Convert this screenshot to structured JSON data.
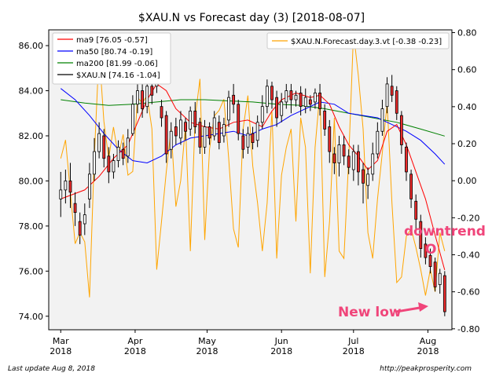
{
  "chart_data": {
    "type": "candlestick",
    "title": "$XAU.N vs Forecast day (3)  [2018-08-07]",
    "footer_left": "Last update Aug  8, 2018",
    "footer_right": "http://peakprosperity.com",
    "x_ticks": [
      {
        "label": "Mar\n2018",
        "day": 0
      },
      {
        "label": "Apr\n2018",
        "day": 31
      },
      {
        "label": "May\n2018",
        "day": 61
      },
      {
        "label": "Jun\n2018",
        "day": 92
      },
      {
        "label": "Jul\n2018",
        "day": 122
      },
      {
        "label": "Aug\n2018",
        "day": 153
      }
    ],
    "x_range_days": [
      -5,
      163
    ],
    "y_left": {
      "ylim": [
        73.4,
        86.7
      ],
      "ticks": [
        "74.00",
        "76.00",
        "78.00",
        "80.00",
        "82.00",
        "84.00",
        "86.00"
      ],
      "tick_values": [
        74,
        76,
        78,
        80,
        82,
        84,
        86
      ]
    },
    "y_right": {
      "ylim": [
        -0.805,
        0.815
      ],
      "ticks": [
        "-0.80",
        "-0.60",
        "-0.40",
        "-0.20",
        "0.00",
        "0.20",
        "0.40",
        "0.60",
        "0.80"
      ],
      "tick_values": [
        -0.8,
        -0.6,
        -0.4,
        -0.2,
        0,
        0.2,
        0.4,
        0.6,
        0.8
      ]
    },
    "legend_left": [
      {
        "name": "ma9 [76.05 -0.57]",
        "color": "#ff0000"
      },
      {
        "name": "ma50 [80.74 -0.19]",
        "color": "#0000ff"
      },
      {
        "name": "ma200 [81.99 -0.06]",
        "color": "#008000"
      },
      {
        "name": "$XAU.N [74.16 -1.04]",
        "color": "#000000"
      }
    ],
    "legend_right": [
      {
        "name": "$XAU.N.Forecast.day.3.vt [-0.38 -0.23]",
        "color": "#ffa500"
      }
    ],
    "candles": [
      [
        0,
        79.2,
        79.6,
        78.4,
        80.4
      ],
      [
        2,
        79.6,
        80,
        79,
        80.5
      ],
      [
        4,
        80.0,
        79.5,
        78.8,
        80.8
      ],
      [
        6,
        79.0,
        78.6,
        78,
        79.5
      ],
      [
        8,
        78.2,
        77.6,
        77.2,
        78.6
      ],
      [
        10,
        78.1,
        78.5,
        77.6,
        79
      ],
      [
        12,
        79.2,
        80.3,
        78.8,
        80.8
      ],
      [
        14,
        80.3,
        81.3,
        80,
        81.9
      ],
      [
        16,
        81.3,
        82.1,
        81.0,
        82.6
      ],
      [
        18,
        82.0,
        81.0,
        80.6,
        82.3
      ],
      [
        20,
        81.1,
        80.4,
        79.9,
        81.5
      ],
      [
        22,
        80.4,
        80.9,
        80.1,
        81.2
      ],
      [
        24,
        80.9,
        81.5,
        80.6,
        81.8
      ],
      [
        26,
        81.4,
        81.0,
        80.7,
        81.7
      ],
      [
        28,
        81.1,
        81.9,
        80.8,
        82.3
      ],
      [
        30,
        82.1,
        83.4,
        82,
        83.8
      ],
      [
        32,
        83.4,
        84.0,
        83.0,
        84.5
      ],
      [
        34,
        84.0,
        83.2,
        82.8,
        84.4
      ],
      [
        36,
        83.3,
        84.2,
        83.0,
        84.7
      ],
      [
        38,
        84.2,
        83.8,
        83.4,
        85.0
      ],
      [
        40,
        84.2,
        84.4,
        83.9,
        84.7
      ],
      [
        42,
        83.3,
        82.8,
        82.4,
        83.6
      ],
      [
        44,
        82.9,
        81.2,
        80.8,
        83.1
      ],
      [
        46,
        81.4,
        82.2,
        81.0,
        82.6
      ],
      [
        48,
        82.4,
        82.0,
        81.6,
        82.8
      ],
      [
        50,
        81.9,
        82.7,
        81.6,
        83.1
      ],
      [
        52,
        82.6,
        82.2,
        81.8,
        82.8
      ],
      [
        54,
        82.3,
        83.1,
        82.0,
        83.3
      ],
      [
        56,
        83.1,
        82.4,
        82.1,
        83.5
      ],
      [
        58,
        82.6,
        81.5,
        81.2,
        82.8
      ],
      [
        60,
        81.5,
        82.4,
        81.2,
        82.7
      ],
      [
        62,
        82.4,
        81.9,
        81.6,
        82.6
      ],
      [
        64,
        82.0,
        82.8,
        81.8,
        83.1
      ],
      [
        66,
        82.6,
        81.7,
        81.4,
        82.9
      ],
      [
        68,
        82.0,
        82.5,
        81.7,
        82.8
      ],
      [
        70,
        82.7,
        83.7,
        82.4,
        84.0
      ],
      [
        72,
        83.8,
        83.4,
        83.0,
        84.3
      ],
      [
        74,
        83.4,
        82.1,
        81.8,
        83.6
      ],
      [
        76,
        82.0,
        81.4,
        81.0,
        82.3
      ],
      [
        78,
        81.5,
        82.1,
        81.2,
        82.4
      ],
      [
        80,
        82.1,
        81.7,
        81.4,
        82.4
      ],
      [
        82,
        81.8,
        82.6,
        81.5,
        82.9
      ],
      [
        84,
        82.6,
        83.3,
        82.3,
        83.8
      ],
      [
        86,
        83.3,
        84.2,
        83.0,
        84.5
      ],
      [
        88,
        84.2,
        83.6,
        83.2,
        84.4
      ],
      [
        90,
        83.7,
        82.8,
        82.4,
        84.0
      ],
      [
        92,
        82.9,
        83.5,
        82.6,
        83.9
      ],
      [
        94,
        83.5,
        84.0,
        83.2,
        84.3
      ],
      [
        96,
        84.0,
        83.6,
        83.0,
        84.3
      ],
      [
        98,
        83.6,
        83.8,
        83.3,
        84.0
      ],
      [
        100,
        83.9,
        83.3,
        82.9,
        84.2
      ],
      [
        102,
        83.3,
        83.7,
        83.0,
        84.1
      ],
      [
        104,
        83.6,
        83.4,
        83.1,
        83.8
      ],
      [
        106,
        83.5,
        83.9,
        83.2,
        84.1
      ],
      [
        108,
        83.9,
        83.2,
        82.9,
        84.3
      ],
      [
        110,
        83.1,
        82.3,
        82.0,
        83.4
      ],
      [
        112,
        82.4,
        81.3,
        80.8,
        82.7
      ],
      [
        114,
        81.2,
        80.8,
        80.3,
        81.5
      ],
      [
        116,
        80.8,
        81.6,
        80.2,
        82.0
      ],
      [
        118,
        81.6,
        81.1,
        80.7,
        82.0
      ],
      [
        120,
        81.1,
        80.6,
        80.3,
        81.4
      ],
      [
        122,
        80.5,
        81.3,
        80.0,
        81.6
      ],
      [
        124,
        81.3,
        80.4,
        79.8,
        81.6
      ],
      [
        126,
        80.5,
        79.9,
        79.0,
        80.8
      ],
      [
        128,
        79.8,
        80.3,
        79.2,
        80.6
      ],
      [
        130,
        80.3,
        81.2,
        80.0,
        81.7
      ],
      [
        132,
        81.2,
        82.2,
        81.0,
        82.6
      ],
      [
        134,
        82.2,
        83.2,
        82.0,
        83.6
      ],
      [
        136,
        83.3,
        84.3,
        83.0,
        84.6
      ],
      [
        138,
        84.2,
        83.8,
        83.5,
        84.7
      ],
      [
        140,
        84.0,
        83.0,
        82.7,
        84.2
      ],
      [
        142,
        82.9,
        81.6,
        81.2,
        83.1
      ],
      [
        144,
        81.5,
        80.4,
        80.0,
        81.7
      ],
      [
        146,
        80.3,
        79.2,
        78.8,
        80.5
      ],
      [
        148,
        79.1,
        78.3,
        77.8,
        79.4
      ],
      [
        150,
        78.2,
        77.0,
        76.6,
        78.5
      ],
      [
        152,
        77.2,
        76.6,
        76.3,
        77.5
      ],
      [
        154,
        76.7,
        76.2,
        75.9,
        77.0
      ],
      [
        156,
        76.4,
        75.3,
        75.1,
        76.6
      ],
      [
        158,
        75.4,
        75.9,
        75.0,
        76.1
      ],
      [
        160,
        75.8,
        74.2,
        74.0,
        76.0
      ]
    ],
    "candle_up_color": "#ffffff",
    "candle_down_color": "#ee2b2b",
    "ma9": [
      [
        0,
        79.2
      ],
      [
        10,
        79.6
      ],
      [
        16,
        80.2
      ],
      [
        22,
        81.0
      ],
      [
        28,
        81.6
      ],
      [
        32,
        82.6
      ],
      [
        36,
        83.6
      ],
      [
        40,
        84.3
      ],
      [
        44,
        84.0
      ],
      [
        48,
        83.2
      ],
      [
        54,
        82.6
      ],
      [
        60,
        82.4
      ],
      [
        66,
        82.3
      ],
      [
        72,
        82.6
      ],
      [
        78,
        82.7
      ],
      [
        84,
        82.4
      ],
      [
        88,
        83.1
      ],
      [
        92,
        83.6
      ],
      [
        98,
        83.9
      ],
      [
        104,
        83.7
      ],
      [
        108,
        83.8
      ],
      [
        112,
        83.4
      ],
      [
        116,
        82.4
      ],
      [
        120,
        81.6
      ],
      [
        124,
        81.1
      ],
      [
        128,
        80.5
      ],
      [
        132,
        80.9
      ],
      [
        136,
        82.2
      ],
      [
        140,
        82.5
      ],
      [
        144,
        81.6
      ],
      [
        148,
        80.4
      ],
      [
        152,
        79.2
      ],
      [
        156,
        77.6
      ],
      [
        160,
        76.05
      ]
    ],
    "ma50": [
      [
        0,
        84.1
      ],
      [
        6,
        83.6
      ],
      [
        12,
        82.9
      ],
      [
        18,
        82.1
      ],
      [
        24,
        81.4
      ],
      [
        30,
        80.9
      ],
      [
        36,
        80.8
      ],
      [
        42,
        81.1
      ],
      [
        48,
        81.6
      ],
      [
        54,
        81.9
      ],
      [
        60,
        82.0
      ],
      [
        66,
        82.1
      ],
      [
        72,
        82.2
      ],
      [
        78,
        82.0
      ],
      [
        84,
        82.3
      ],
      [
        90,
        82.5
      ],
      [
        96,
        82.9
      ],
      [
        102,
        83.2
      ],
      [
        108,
        83.5
      ],
      [
        114,
        83.4
      ],
      [
        120,
        83.0
      ],
      [
        126,
        82.9
      ],
      [
        132,
        82.8
      ],
      [
        138,
        82.5
      ],
      [
        144,
        82.2
      ],
      [
        150,
        81.8
      ],
      [
        156,
        81.2
      ],
      [
        160,
        80.74
      ]
    ],
    "ma200": [
      [
        0,
        83.6
      ],
      [
        10,
        83.45
      ],
      [
        20,
        83.35
      ],
      [
        30,
        83.4
      ],
      [
        40,
        83.5
      ],
      [
        50,
        83.6
      ],
      [
        60,
        83.6
      ],
      [
        70,
        83.55
      ],
      [
        80,
        83.5
      ],
      [
        90,
        83.4
      ],
      [
        100,
        83.35
      ],
      [
        110,
        83.2
      ],
      [
        120,
        83.0
      ],
      [
        130,
        82.8
      ],
      [
        140,
        82.6
      ],
      [
        150,
        82.3
      ],
      [
        160,
        81.99
      ]
    ],
    "forecast": [
      [
        0,
        0.12
      ],
      [
        2,
        0.22
      ],
      [
        4,
        -0.06
      ],
      [
        6,
        -0.34
      ],
      [
        8,
        -0.28
      ],
      [
        10,
        -0.33
      ],
      [
        12,
        -0.63
      ],
      [
        14,
        0.13
      ],
      [
        16,
        0.7
      ],
      [
        18,
        0.32
      ],
      [
        20,
        0.12
      ],
      [
        22,
        0.29
      ],
      [
        24,
        0.13
      ],
      [
        26,
        0.25
      ],
      [
        28,
        0.03
      ],
      [
        30,
        0.05
      ],
      [
        32,
        0.45
      ],
      [
        34,
        0.42
      ],
      [
        36,
        0.46
      ],
      [
        38,
        0.28
      ],
      [
        40,
        -0.48
      ],
      [
        42,
        -0.22
      ],
      [
        44,
        0.05
      ],
      [
        46,
        0.28
      ],
      [
        48,
        -0.14
      ],
      [
        50,
        0.0
      ],
      [
        52,
        0.3
      ],
      [
        54,
        -0.38
      ],
      [
        56,
        0.34
      ],
      [
        58,
        0.55
      ],
      [
        60,
        -0.32
      ],
      [
        62,
        0.17
      ],
      [
        64,
        0.35
      ],
      [
        66,
        0.38
      ],
      [
        68,
        0.44
      ],
      [
        70,
        0.12
      ],
      [
        72,
        -0.26
      ],
      [
        74,
        -0.36
      ],
      [
        76,
        0.28
      ],
      [
        78,
        0.46
      ],
      [
        80,
        0.08
      ],
      [
        82,
        -0.12
      ],
      [
        84,
        -0.38
      ],
      [
        86,
        -0.12
      ],
      [
        88,
        0.38
      ],
      [
        90,
        -0.42
      ],
      [
        92,
        0.03
      ],
      [
        94,
        0.18
      ],
      [
        96,
        0.28
      ],
      [
        98,
        -0.22
      ],
      [
        100,
        0.34
      ],
      [
        102,
        0.18
      ],
      [
        104,
        -0.5
      ],
      [
        106,
        0.18
      ],
      [
        108,
        0.48
      ],
      [
        110,
        -0.52
      ],
      [
        112,
        -0.22
      ],
      [
        114,
        0.34
      ],
      [
        116,
        -0.38
      ],
      [
        118,
        -0.42
      ],
      [
        120,
        0.12
      ],
      [
        122,
        0.8
      ],
      [
        124,
        0.57
      ],
      [
        126,
        0.28
      ],
      [
        128,
        -0.28
      ],
      [
        130,
        -0.42
      ],
      [
        132,
        -0.1
      ],
      [
        134,
        0.15
      ],
      [
        136,
        0.42
      ],
      [
        138,
        -0.12
      ],
      [
        140,
        -0.55
      ],
      [
        142,
        -0.52
      ],
      [
        144,
        -0.3
      ],
      [
        146,
        -0.26
      ],
      [
        148,
        -0.36
      ],
      [
        150,
        -0.48
      ],
      [
        152,
        -0.62
      ],
      [
        154,
        -0.48
      ],
      [
        156,
        -0.6
      ],
      [
        158,
        -0.28
      ],
      [
        160,
        -0.38
      ]
    ],
    "annotations": [
      {
        "text": "downtrend",
        "color": "#f0457a",
        "near_day": 157,
        "near_value": 78.0
      },
      {
        "text": "O",
        "color": "#f0457a",
        "near_day": 157,
        "near_value": 76.7
      },
      {
        "text": "New low",
        "color": "#f0457a",
        "near_day": 138,
        "near_value": 74.5,
        "arrow_to_day": 155,
        "arrow_to_value": 75.0
      }
    ]
  }
}
